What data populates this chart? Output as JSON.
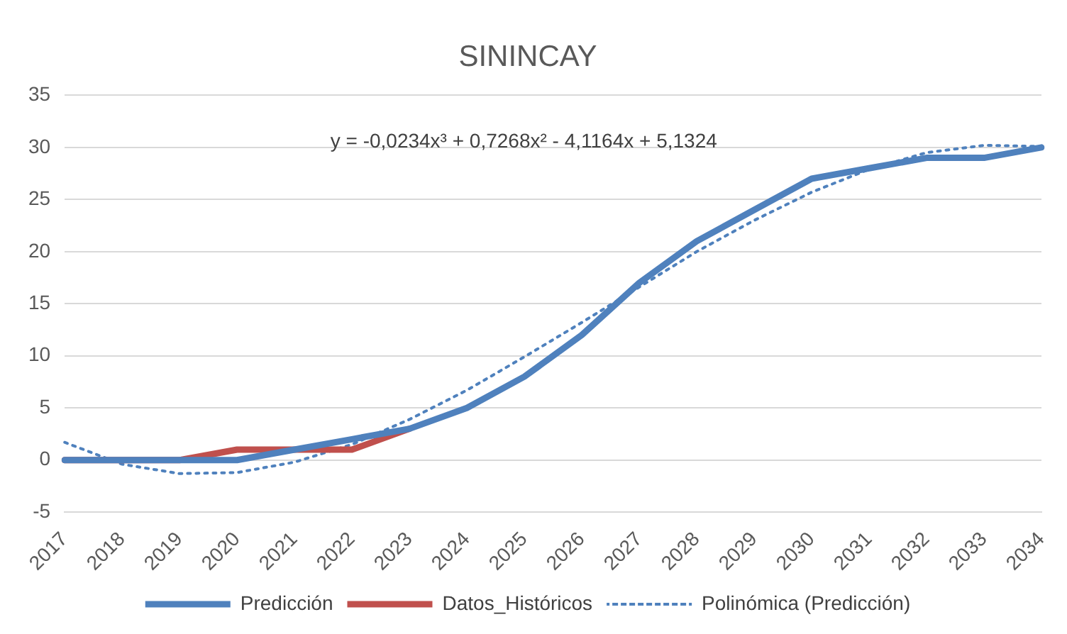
{
  "chart_data": {
    "type": "line",
    "title": "SININCAY",
    "categories": [
      "2017",
      "2018",
      "2019",
      "2020",
      "2021",
      "2022",
      "2023",
      "2024",
      "2025",
      "2026",
      "2027",
      "2028",
      "2029",
      "2030",
      "2031",
      "2032",
      "2033",
      "2034"
    ],
    "series": [
      {
        "name": "Predicción",
        "color": "#4f81bd",
        "values": [
          0,
          0,
          0,
          0,
          1,
          2,
          3,
          5,
          8,
          12,
          17,
          21,
          24,
          27,
          28,
          29,
          29,
          30
        ]
      },
      {
        "name": "Datos_Históricos",
        "color": "#c0504d",
        "values": [
          0,
          0,
          0,
          1,
          1,
          1,
          3,
          null,
          null,
          null,
          null,
          null,
          null,
          null,
          null,
          null,
          null,
          null
        ]
      },
      {
        "name": "Polinómica (Predicción)",
        "color": "#4f81bd",
        "line_style": "dotted",
        "values": [
          1.7,
          -0.4,
          -1.3,
          -1.2,
          -0.2,
          1.5,
          3.9,
          6.7,
          9.9,
          13.2,
          16.6,
          20.0,
          23.0,
          25.7,
          27.9,
          29.5,
          30.2,
          30.1
        ]
      }
    ],
    "ylim": [
      -5,
      35
    ],
    "yticks": [
      -5,
      0,
      5,
      10,
      15,
      20,
      25,
      30,
      35
    ],
    "grid": "y",
    "legend": "bottom",
    "marker": "none",
    "annotations": [
      "y = -0,0234x³ + 0,7268x² - 4,1164x + 5,1324"
    ]
  }
}
